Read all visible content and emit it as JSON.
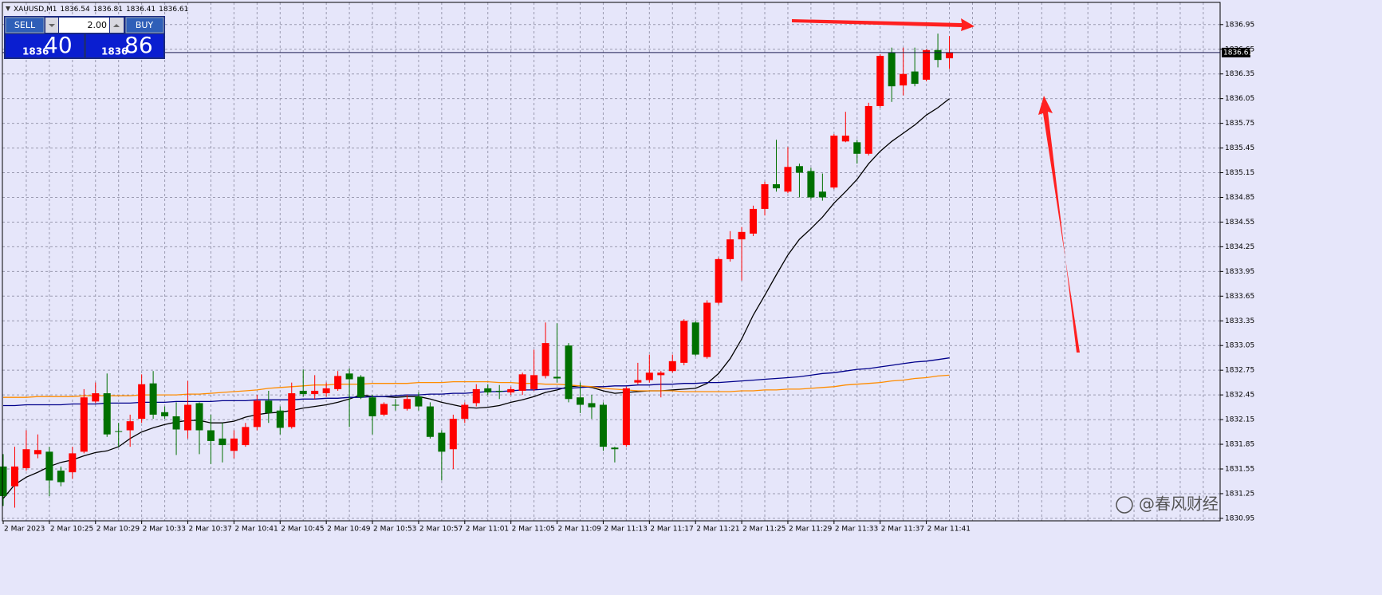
{
  "chart_data": {
    "type": "candlestick",
    "title": "XAUUSD,M1",
    "categories": [
      "2 Mar 2023",
      null,
      null,
      null,
      "2 Mar 10:25",
      null,
      null,
      null,
      "2 Mar 10:29",
      null,
      null,
      null,
      "2 Mar 10:33",
      null,
      null,
      null,
      "2 Mar 10:37",
      null,
      null,
      null,
      "2 Mar 10:41",
      null,
      null,
      null,
      "2 Mar 10:45",
      null,
      null,
      null,
      "2 Mar 10:49",
      null,
      null,
      null,
      "2 Mar 10:53",
      null,
      null,
      null,
      "2 Mar 10:57",
      null,
      null,
      null,
      "2 Mar 11:01",
      null,
      null,
      null,
      "2 Mar 11:05",
      null,
      null,
      null,
      "2 Mar 11:09",
      null,
      null,
      null,
      "2 Mar 11:13",
      null,
      null,
      null,
      "2 Mar 11:17",
      null,
      null,
      null,
      "2 Mar 11:21",
      null,
      null,
      null,
      "2 Mar 11:25",
      null,
      null,
      null,
      "2 Mar 11:29",
      null,
      null,
      null,
      "2 Mar 11:33",
      null,
      null,
      null,
      "2 Mar 11:37",
      null,
      null,
      null,
      "2 Mar 11:41",
      null,
      null
    ],
    "open": [
      1831.58,
      1831.34,
      1831.56,
      1831.73,
      1831.76,
      1831.53,
      1831.51,
      1831.76,
      1832.37,
      1832.47,
      1832.01,
      1832.02,
      1832.16,
      1832.59,
      1832.24,
      1832.19,
      1832.02,
      1832.35,
      1832.02,
      1831.92,
      1831.77,
      1831.84,
      1832.06,
      1832.38,
      1832.26,
      1832.06,
      1832.5,
      1832.46,
      1832.47,
      1832.52,
      1832.71,
      1832.67,
      1832.42,
      1832.21,
      1832.33,
      1832.28,
      1832.43,
      1832.31,
      1831.99,
      1831.79,
      1832.16,
      1832.35,
      1832.53,
      1832.5,
      1832.48,
      1832.5,
      1832.52,
      1832.68,
      1832.67,
      1833.05,
      1832.42,
      1832.35,
      1832.33,
      1831.81,
      1831.84,
      1832.6,
      1832.63,
      1832.69,
      1832.74,
      1832.84,
      1833.33,
      1832.91,
      1833.57,
      1834.1,
      1834.34,
      1834.41,
      1834.71,
      1835.01,
      1834.92,
      1835.23,
      1835.17,
      1834.92,
      1834.97,
      1835.53,
      1835.52,
      1835.38,
      1835.96,
      1836.61,
      1836.21,
      1836.38,
      1836.28,
      1836.64,
      1836.54
    ],
    "high": [
      1831.73,
      1831.82,
      1832.02,
      1831.97,
      1831.82,
      1831.58,
      1831.82,
      1832.52,
      1832.6,
      1832.71,
      1832.11,
      1832.21,
      1832.7,
      1832.74,
      1832.31,
      1832.36,
      1832.62,
      1832.36,
      1832.21,
      1832.11,
      1832.02,
      1832.11,
      1832.45,
      1832.5,
      1832.31,
      1832.6,
      1832.76,
      1832.69,
      1832.6,
      1832.74,
      1832.77,
      1832.69,
      1832.45,
      1832.36,
      1832.4,
      1832.45,
      1832.48,
      1832.36,
      1832.02,
      1832.21,
      1832.36,
      1832.58,
      1832.58,
      1832.57,
      1832.55,
      1832.72,
      1833.0,
      1833.33,
      1833.32,
      1833.08,
      1832.6,
      1832.45,
      1832.36,
      1831.82,
      1832.55,
      1832.84,
      1832.94,
      1832.74,
      1832.94,
      1833.37,
      1833.35,
      1833.6,
      1834.12,
      1834.44,
      1834.49,
      1834.75,
      1835.04,
      1835.55,
      1835.46,
      1835.26,
      1835.21,
      1835.14,
      1835.62,
      1835.89,
      1835.55,
      1836.0,
      1836.59,
      1836.67,
      1836.67,
      1836.67,
      1836.65,
      1836.84,
      1836.81
    ],
    "low": [
      1831.1,
      1831.08,
      1831.53,
      1831.68,
      1831.22,
      1831.34,
      1831.43,
      1831.74,
      1832.35,
      1831.94,
      1831.82,
      1831.82,
      1832.11,
      1832.16,
      1832.16,
      1831.72,
      1831.92,
      1831.73,
      1831.61,
      1831.63,
      1831.68,
      1831.82,
      1832.02,
      1832.11,
      1831.97,
      1832.04,
      1832.43,
      1832.4,
      1832.43,
      1832.5,
      1832.06,
      1832.4,
      1831.97,
      1832.19,
      1832.26,
      1832.26,
      1832.26,
      1831.92,
      1831.41,
      1831.55,
      1832.11,
      1832.31,
      1832.45,
      1832.4,
      1832.45,
      1832.45,
      1832.5,
      1832.65,
      1832.6,
      1832.36,
      1832.23,
      1832.16,
      1831.77,
      1831.63,
      1831.82,
      1832.58,
      1832.6,
      1832.42,
      1832.72,
      1832.81,
      1832.92,
      1832.89,
      1833.55,
      1834.07,
      1833.84,
      1834.38,
      1834.63,
      1834.92,
      1834.9,
      1834.85,
      1834.83,
      1834.81,
      1834.95,
      1835.52,
      1835.26,
      1835.36,
      1835.94,
      1836.01,
      1836.09,
      1836.2,
      1836.26,
      1836.43,
      1836.41
    ],
    "close": [
      1831.22,
      1831.58,
      1831.79,
      1831.78,
      1831.41,
      1831.39,
      1831.74,
      1832.42,
      1832.47,
      1831.97,
      1832.0,
      1832.13,
      1832.58,
      1832.21,
      1832.19,
      1832.03,
      1832.33,
      1832.02,
      1831.89,
      1831.84,
      1831.92,
      1832.06,
      1832.38,
      1832.23,
      1832.05,
      1832.47,
      1832.46,
      1832.5,
      1832.53,
      1832.68,
      1832.64,
      1832.42,
      1832.19,
      1832.34,
      1832.32,
      1832.4,
      1832.31,
      1831.94,
      1831.76,
      1832.16,
      1832.33,
      1832.52,
      1832.48,
      1832.49,
      1832.52,
      1832.7,
      1832.69,
      1833.08,
      1832.65,
      1832.4,
      1832.33,
      1832.3,
      1831.82,
      1831.79,
      1832.53,
      1832.63,
      1832.72,
      1832.72,
      1832.86,
      1833.35,
      1832.94,
      1833.57,
      1834.1,
      1834.34,
      1834.43,
      1834.71,
      1835.01,
      1834.96,
      1835.22,
      1835.15,
      1834.85,
      1834.85,
      1835.6,
      1835.6,
      1835.38,
      1835.96,
      1836.57,
      1836.2,
      1836.35,
      1836.23,
      1836.64,
      1836.52,
      1836.61
    ],
    "up_color": "#ff0000",
    "down_color": "#007000",
    "series": [
      {
        "color": "#000000",
        "values": [
          1831.19,
          1831.36,
          1831.45,
          1831.51,
          1831.58,
          1831.63,
          1831.66,
          1831.71,
          1831.75,
          1831.77,
          1831.82,
          1831.92,
          1832.0,
          1832.05,
          1832.09,
          1832.12,
          1832.14,
          1832.14,
          1832.11,
          1832.11,
          1832.13,
          1832.18,
          1832.21,
          1832.23,
          1832.24,
          1832.26,
          1832.29,
          1832.31,
          1832.33,
          1832.36,
          1832.4,
          1832.45,
          1832.43,
          1832.43,
          1832.42,
          1832.43,
          1832.43,
          1832.4,
          1832.36,
          1832.33,
          1832.3,
          1832.29,
          1832.3,
          1832.32,
          1832.36,
          1832.39,
          1832.43,
          1832.48,
          1832.51,
          1832.55,
          1832.56,
          1832.54,
          1832.5,
          1832.47,
          1832.48,
          1832.49,
          1832.5,
          1832.5,
          1832.51,
          1832.52,
          1832.53,
          1832.59,
          1832.71,
          1832.89,
          1833.13,
          1833.42,
          1833.66,
          1833.91,
          1834.15,
          1834.34,
          1834.47,
          1834.61,
          1834.78,
          1834.92,
          1835.07,
          1835.26,
          1835.41,
          1835.53,
          1835.63,
          1835.73,
          1835.85,
          1835.94,
          1836.05
        ]
      },
      {
        "color": "#00008b",
        "values": [
          1832.32,
          1832.32,
          1832.33,
          1832.33,
          1832.33,
          1832.33,
          1832.34,
          1832.34,
          1832.34,
          1832.35,
          1832.35,
          1832.35,
          1832.36,
          1832.36,
          1832.36,
          1832.37,
          1832.37,
          1832.37,
          1832.37,
          1832.38,
          1832.38,
          1832.38,
          1832.39,
          1832.39,
          1832.39,
          1832.39,
          1832.4,
          1832.4,
          1832.41,
          1832.41,
          1832.42,
          1832.42,
          1832.43,
          1832.43,
          1832.44,
          1832.45,
          1832.45,
          1832.46,
          1832.46,
          1832.47,
          1832.47,
          1832.48,
          1832.49,
          1832.49,
          1832.5,
          1832.51,
          1832.51,
          1832.52,
          1832.53,
          1832.53,
          1832.54,
          1832.55,
          1832.55,
          1832.56,
          1832.56,
          1832.57,
          1832.57,
          1832.58,
          1832.58,
          1832.59,
          1832.59,
          1832.6,
          1832.6,
          1832.61,
          1832.62,
          1832.63,
          1832.64,
          1832.65,
          1832.66,
          1832.67,
          1832.69,
          1832.71,
          1832.72,
          1832.74,
          1832.76,
          1832.77,
          1832.79,
          1832.81,
          1832.83,
          1832.85,
          1832.86,
          1832.88,
          1832.9
        ]
      },
      {
        "color": "#ff8c00",
        "values": [
          1832.42,
          1832.42,
          1832.42,
          1832.43,
          1832.43,
          1832.43,
          1832.43,
          1832.44,
          1832.44,
          1832.44,
          1832.44,
          1832.44,
          1832.45,
          1832.45,
          1832.45,
          1832.45,
          1832.46,
          1832.46,
          1832.47,
          1832.48,
          1832.49,
          1832.5,
          1832.51,
          1832.53,
          1832.54,
          1832.55,
          1832.56,
          1832.57,
          1832.57,
          1832.58,
          1832.58,
          1832.58,
          1832.59,
          1832.59,
          1832.59,
          1832.59,
          1832.6,
          1832.6,
          1832.6,
          1832.61,
          1832.61,
          1832.61,
          1832.61,
          1832.6,
          1832.6,
          1832.59,
          1832.59,
          1832.58,
          1832.58,
          1832.57,
          1832.56,
          1832.55,
          1832.53,
          1832.52,
          1832.51,
          1832.5,
          1832.5,
          1832.5,
          1832.5,
          1832.49,
          1832.49,
          1832.49,
          1832.49,
          1832.49,
          1832.5,
          1832.5,
          1832.51,
          1832.51,
          1832.52,
          1832.52,
          1832.53,
          1832.54,
          1832.55,
          1832.57,
          1832.58,
          1832.59,
          1832.6,
          1832.62,
          1832.63,
          1832.65,
          1832.66,
          1832.68,
          1832.69
        ]
      }
    ],
    "ylim": [
      1830.92,
      1837.2
    ],
    "yticks": [
      1830.95,
      1831.25,
      1831.55,
      1831.85,
      1832.15,
      1832.45,
      1832.75,
      1833.05,
      1833.35,
      1833.65,
      1833.95,
      1834.25,
      1834.55,
      1834.85,
      1835.15,
      1835.45,
      1835.75,
      1836.05,
      1836.35,
      1836.65,
      1836.95
    ],
    "grid": true
  },
  "trade_panel": {
    "sell_label": "SELL",
    "buy_label": "BUY",
    "lot": "2.00",
    "sell_big": "1836",
    "sell_small": "40",
    "buy_big": "1836",
    "buy_small": "86"
  },
  "watermark": "@春风财经"
}
